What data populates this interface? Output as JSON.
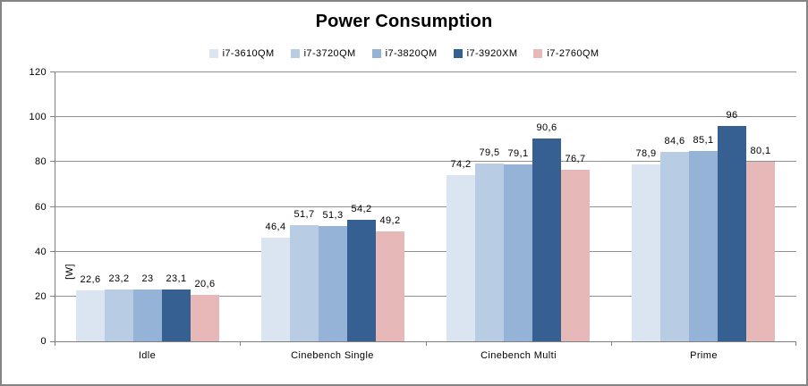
{
  "chart_data": {
    "type": "bar",
    "title": "Power Consumption",
    "ylabel": "[W]",
    "xlabel": "",
    "ylim": [
      0,
      120
    ],
    "yticks": [
      "0",
      "20",
      "40",
      "60",
      "80",
      "100",
      "120"
    ],
    "ytick_interval": 20,
    "grid": true,
    "legend_position": "top",
    "decimal_separator": ",",
    "categories": [
      "Idle",
      "Cinebench Single",
      "Cinebench Multi",
      "Prime"
    ],
    "series": [
      {
        "name": "i7-3610QM",
        "color": "#dbe5f1",
        "values": [
          22.6,
          46.4,
          74.2,
          78.9
        ],
        "labels": [
          "22,6",
          "46,4",
          "74,2",
          "78,9"
        ]
      },
      {
        "name": "i7-3720QM",
        "color": "#b8cce4",
        "values": [
          23.2,
          51.7,
          79.5,
          84.6
        ],
        "labels": [
          "23,2",
          "51,7",
          "79,5",
          "84,6"
        ]
      },
      {
        "name": "i7-3820QM",
        "color": "#95b3d7",
        "values": [
          23.0,
          51.3,
          79.1,
          85.1
        ],
        "labels": [
          "23",
          "51,3",
          "79,1",
          "85,1"
        ]
      },
      {
        "name": "i7-3920XM",
        "color": "#366092",
        "values": [
          23.1,
          54.2,
          90.6,
          96.0
        ],
        "labels": [
          "23,1",
          "54,2",
          "90,6",
          "96"
        ]
      },
      {
        "name": "i7-2760QM",
        "color": "#e6b9b8",
        "values": [
          20.6,
          49.2,
          76.7,
          80.1
        ],
        "labels": [
          "20,6",
          "49,2",
          "76,7",
          "80,1"
        ]
      }
    ]
  },
  "colors": {
    "background": "#ffffff",
    "window_border": "#848484",
    "gridline": "#909090",
    "axis": "#808080",
    "text": "#000000"
  }
}
